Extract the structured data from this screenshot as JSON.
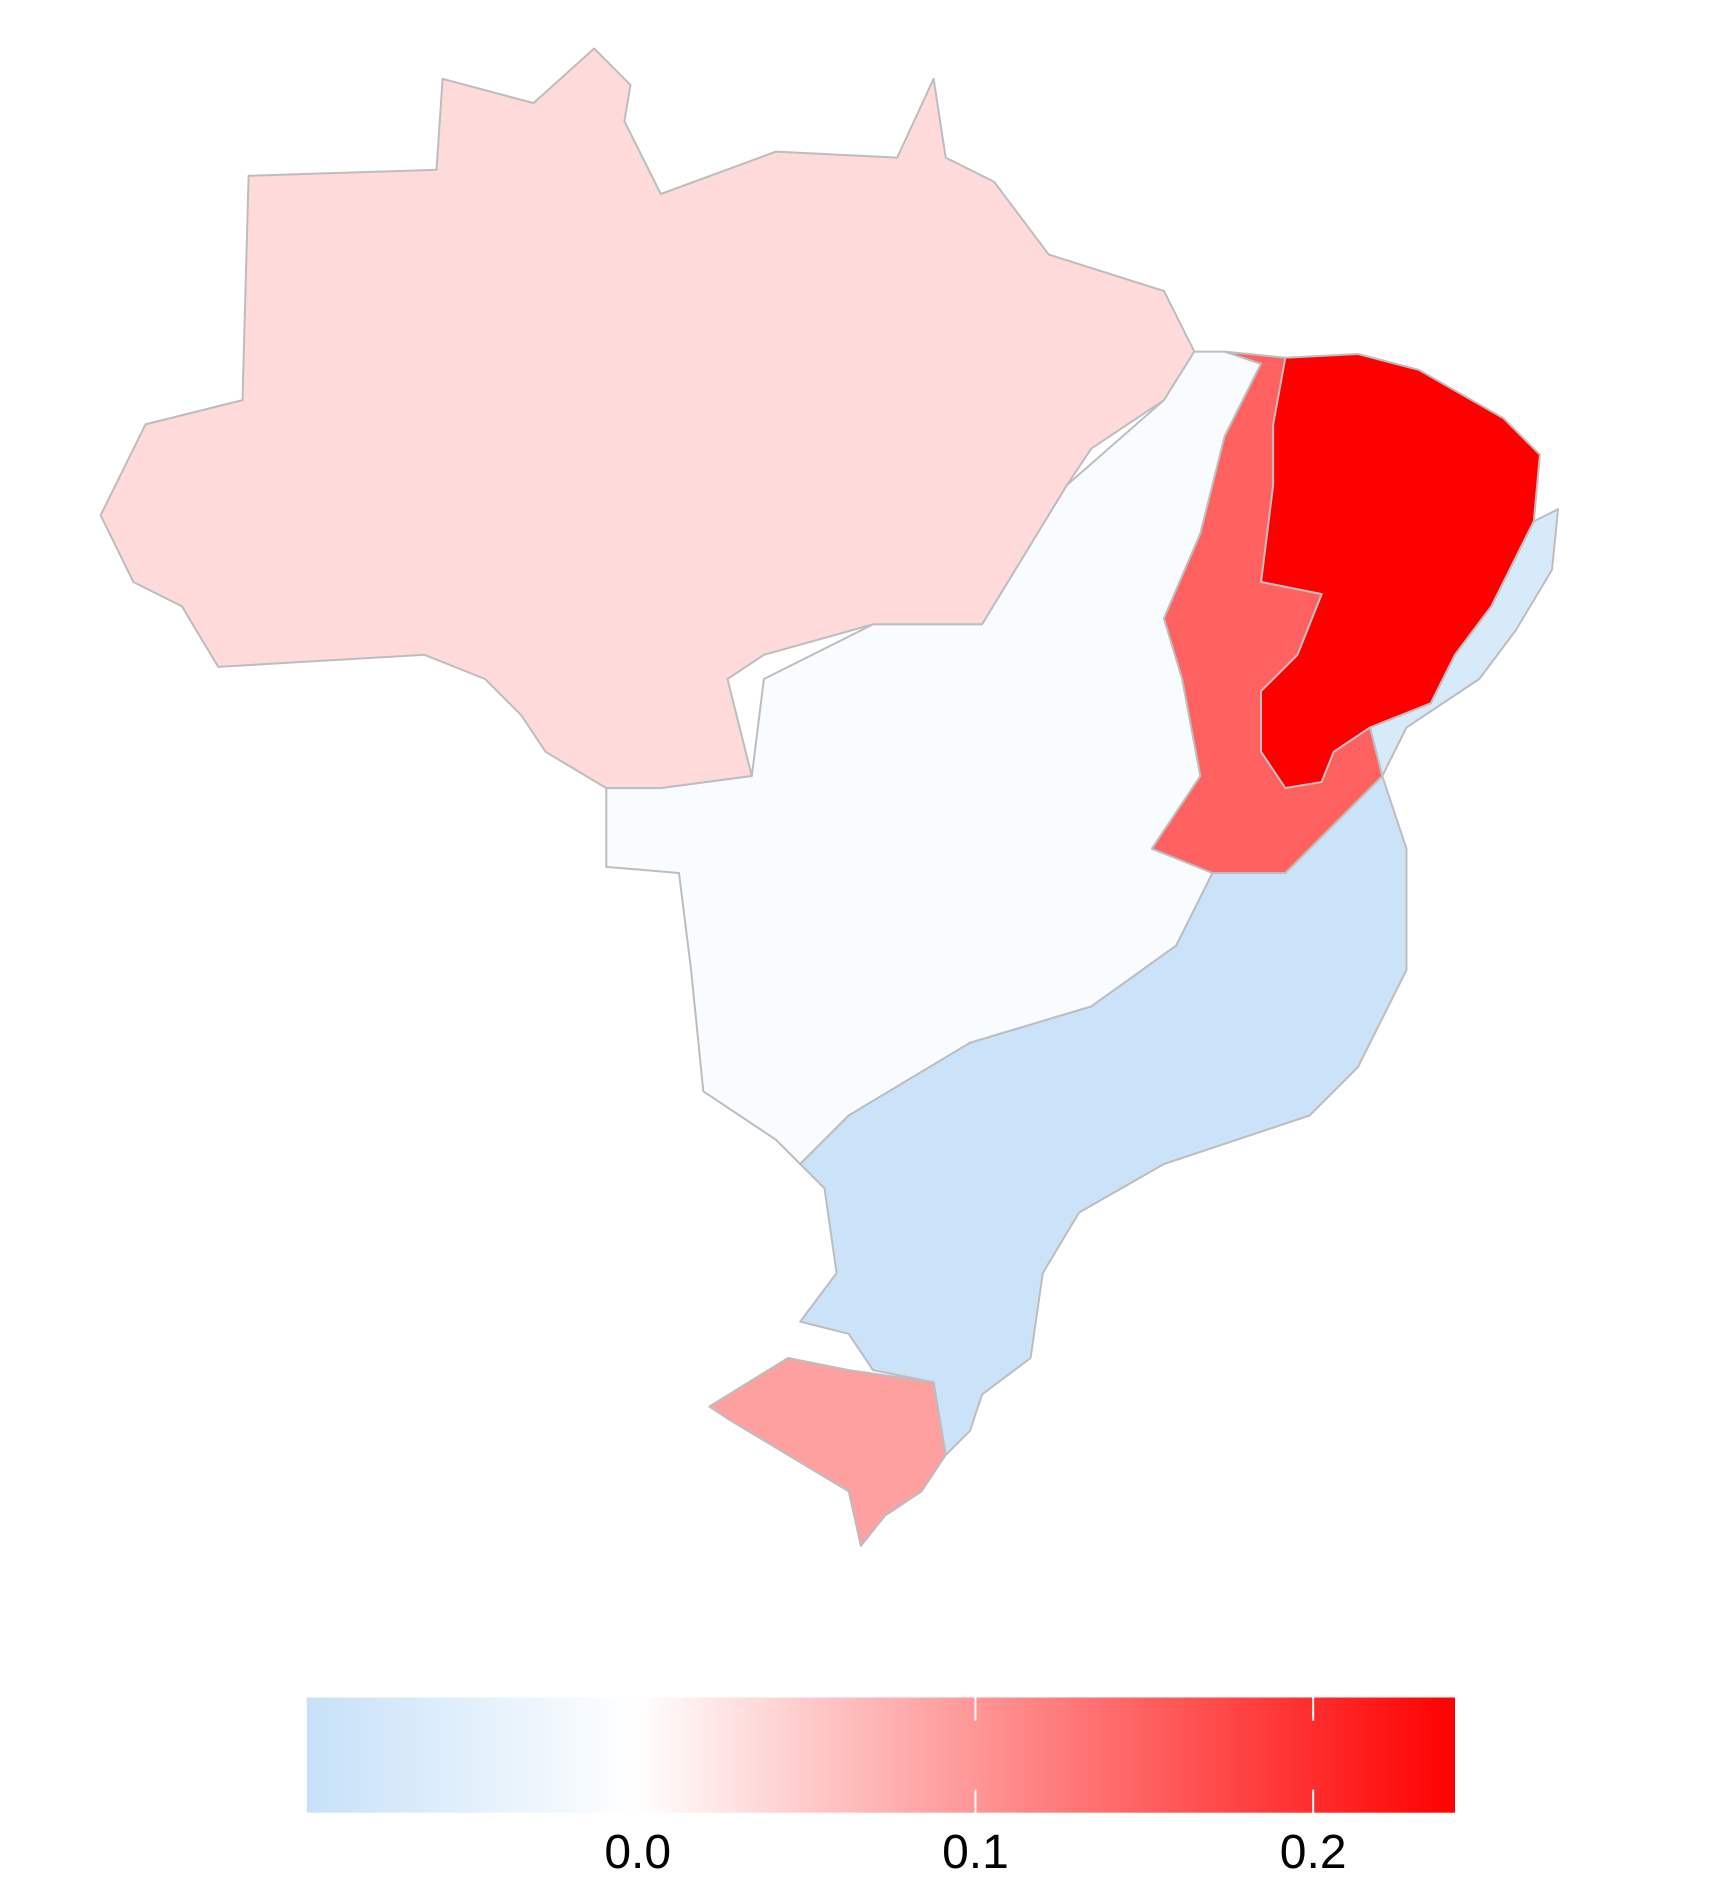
{
  "chart_data": {
    "type": "choropleth",
    "values": [
      0.035,
      -0.01,
      -0.09,
      0.242,
      0.15,
      -0.07,
      0.09
    ],
    "colorbar": {
      "lim": [
        -0.098,
        0.242
      ],
      "midpoint": 0,
      "ticks": [
        {
          "value": 0,
          "label": "0.0"
        },
        0.1,
        0.2
      ],
      "colors": [
        "#c6e1f8",
        "#ffffff",
        "#ff0000"
      ]
    }
  }
}
